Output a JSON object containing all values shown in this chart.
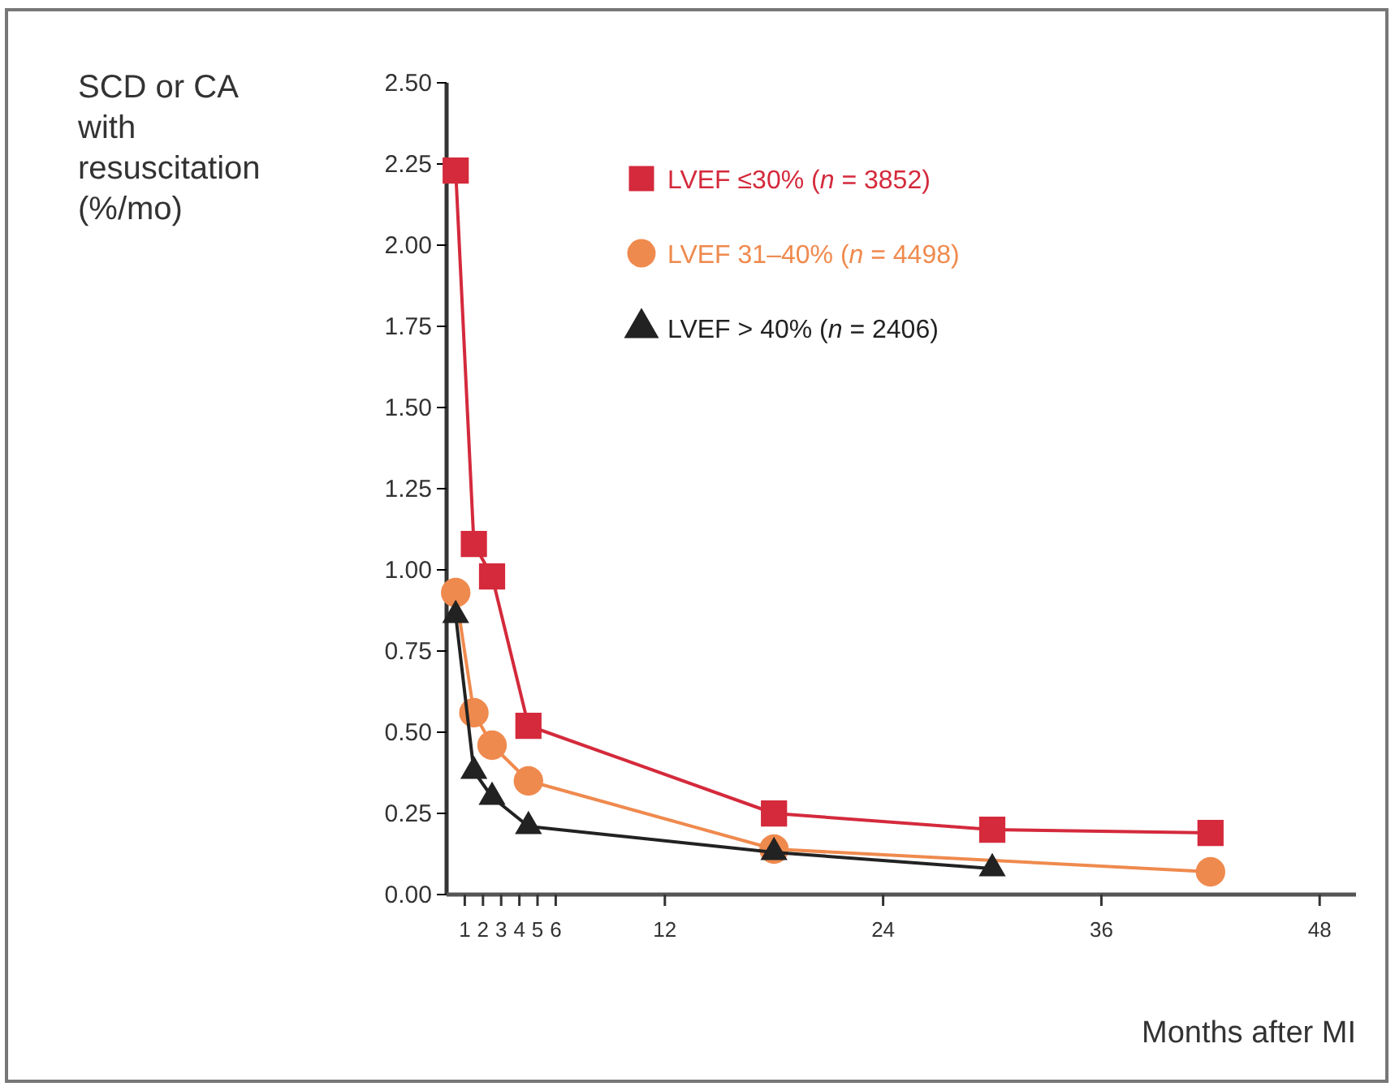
{
  "chart_data": {
    "type": "line",
    "ylabel": "SCD or CA with resuscitation (%/mo)",
    "xlabel": "Months after MI",
    "x": [
      0.5,
      1.5,
      2.5,
      4.5,
      18,
      30,
      42
    ],
    "series": [
      {
        "name": "LVEF ≤30% (n = 3852)",
        "color": "#d42a3c",
        "marker": "square",
        "values": [
          2.23,
          1.08,
          0.98,
          0.52,
          0.25,
          0.2,
          0.19
        ]
      },
      {
        "name": "LVEF 31–40% (n = 4498)",
        "color": "#ef8a4e",
        "marker": "circle",
        "values": [
          0.93,
          0.56,
          0.46,
          0.35,
          0.14,
          null,
          0.07
        ]
      },
      {
        "name": "LVEF > 40% (n = 2406)",
        "color": "#222222",
        "marker": "triangle",
        "values": [
          0.86,
          0.38,
          0.3,
          0.21,
          0.13,
          0.08,
          null
        ]
      }
    ],
    "xlim": [
      0,
      50
    ],
    "xticks": [
      1,
      2,
      3,
      4,
      5,
      6,
      12,
      24,
      36,
      48
    ],
    "ylim": [
      0,
      2.5
    ],
    "yticks": [
      {
        "value": 0,
        "label": "0.00"
      },
      {
        "value": 0.25,
        "label": "0.25"
      },
      {
        "value": 0.5,
        "label": "0.50"
      },
      {
        "value": 0.75,
        "label": "0.75"
      },
      {
        "value": 1,
        "label": "1.00"
      },
      {
        "value": 1.25,
        "label": "1.25"
      },
      {
        "value": 1.5,
        "label": "1.50"
      },
      {
        "value": 1.75,
        "label": "1.75"
      },
      {
        "value": 2,
        "label": "2.00"
      },
      {
        "value": 2.25,
        "label": "2.25"
      },
      {
        "value": 2.5,
        "label": "2.50"
      }
    ],
    "grid": false,
    "legend": "top",
    "line_style": "solid"
  }
}
